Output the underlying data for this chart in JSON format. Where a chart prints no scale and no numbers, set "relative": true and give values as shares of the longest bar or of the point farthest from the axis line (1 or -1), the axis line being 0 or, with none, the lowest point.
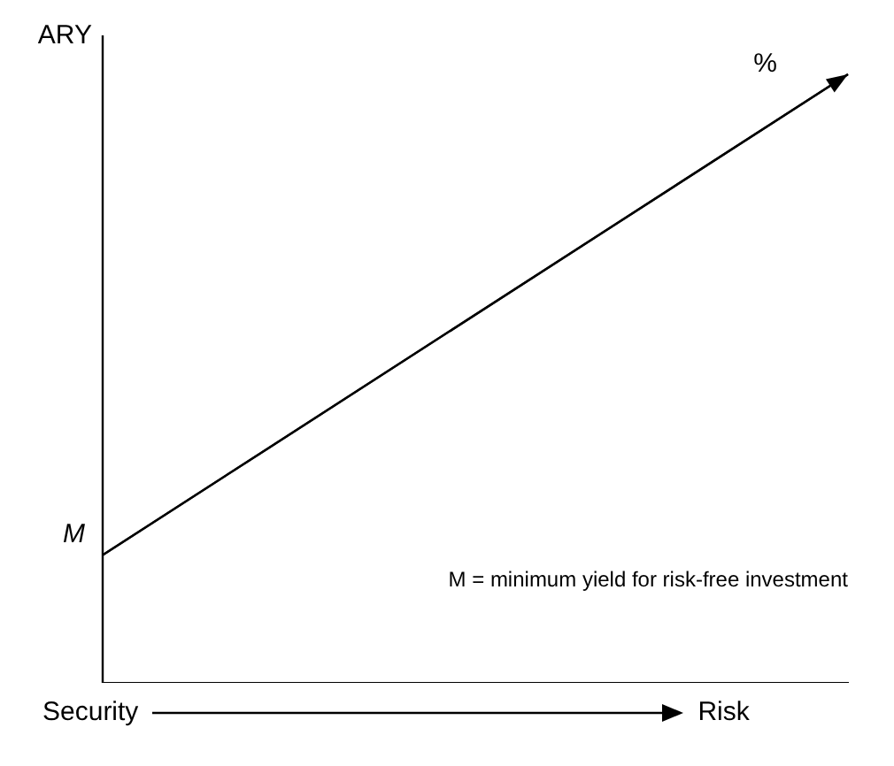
{
  "chart_data": {
    "type": "line",
    "relative": true,
    "categories": [
      null,
      null
    ],
    "series": [
      {
        "color": "#000000",
        "values": [
          0.21,
          1
        ]
      }
    ],
    "ylabel": "ARY",
    "xlabel": "Security",
    "annotations": [
      "%",
      "M",
      "M = minimum yield for risk-free investment",
      "Risk"
    ],
    "marker": "none",
    "legend": false,
    "grid": false
  }
}
